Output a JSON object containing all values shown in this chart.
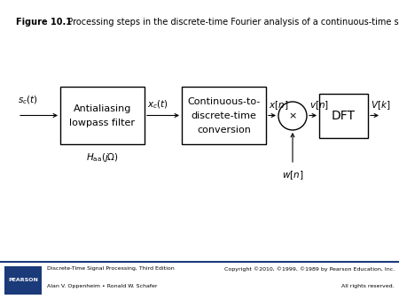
{
  "title_bold": "Figure 10.1",
  "title_normal": "  Processing steps in the discrete-time Fourier analysis of a continuous-time signal.",
  "title_fontsize": 7.0,
  "bg_color": "#ffffff",
  "box_color": "#ffffff",
  "box_edge": "#000000",
  "arrow_color": "#000000",
  "pearson_bg": "#1a3a7a",
  "pearson_text": "PEARSON",
  "footer_left1": "Discrete-Time Signal Processing, Third Edition",
  "footer_left2": "Alan V. Oppenheim • Ronald W. Schafer",
  "footer_right1": "Copyright ©2010, ©1999, ©1989 by Pearson Education, Inc.",
  "footer_right2": "All rights reserved.",
  "block1_line1": "Antialiasing",
  "block1_line2": "lowpass filter",
  "block2_line1": "Continuous-to-",
  "block2_line2": "discrete-time",
  "block2_line3": "conversion",
  "block3_text": "DFT",
  "label_sc": "$s_c(t)$",
  "label_xc": "$x_c(t)$",
  "label_xn": "$x[n]$",
  "label_vn": "$v[n]$",
  "label_Vk": "$V[k]$",
  "label_Haa": "$H_{\\mathrm{aa}}(j\\Omega)$",
  "label_wn": "$w[n]$",
  "circle_mult": "$\\times$"
}
